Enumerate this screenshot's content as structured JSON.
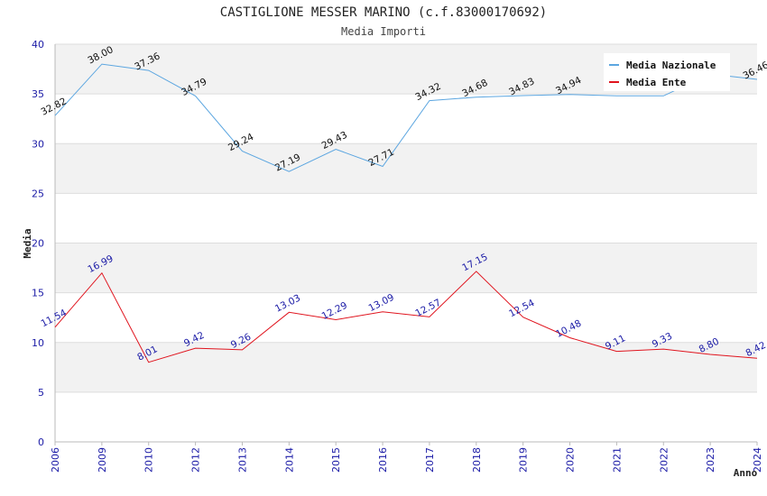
{
  "chart_data": {
    "type": "line",
    "title": "CASTIGLIONE MESSER MARINO (c.f.83000170692)",
    "subtitle": "Media Importi",
    "xlabel": "Anno",
    "ylabel": "Media",
    "ylim": [
      0,
      40
    ],
    "yticks": [
      0,
      5,
      10,
      15,
      20,
      25,
      30,
      35,
      40
    ],
    "grid": true,
    "legend_position": "top-right",
    "categories": [
      "2006",
      "2009",
      "2010",
      "2012",
      "2013",
      "2014",
      "2015",
      "2016",
      "2017",
      "2018",
      "2019",
      "2020",
      "2021",
      "2022",
      "2023",
      "2024"
    ],
    "series": [
      {
        "name": "Media Nazionale",
        "color": "#5ca6e0",
        "label_color": "#111111",
        "values": [
          32.82,
          38.0,
          37.36,
          34.79,
          29.24,
          27.19,
          29.43,
          27.71,
          34.32,
          34.68,
          34.83,
          34.94,
          34.8,
          34.8,
          37.0,
          36.46
        ],
        "labels": [
          "32.82",
          "38.00",
          "37.36",
          "34.79",
          "29.24",
          "27.19",
          "29.43",
          "27.71",
          "34.32",
          "34.68",
          "34.83",
          "34.94",
          "",
          "",
          "",
          "36.46"
        ]
      },
      {
        "name": "Media Ente",
        "color": "#e0141e",
        "label_color": "#1a1aa6",
        "values": [
          11.54,
          16.99,
          8.01,
          9.42,
          9.26,
          13.03,
          12.29,
          13.09,
          12.57,
          17.15,
          12.54,
          10.48,
          9.11,
          9.33,
          8.8,
          8.42
        ],
        "labels": [
          "11.54",
          "16.99",
          "8.01",
          "9.42",
          "9.26",
          "13.03",
          "12.29",
          "13.09",
          "12.57",
          "17.15",
          "12.54",
          "10.48",
          "9.11",
          "9.33",
          "8.80",
          "8.42"
        ]
      }
    ]
  },
  "colors": {
    "band": "#f2f2f2",
    "grid": "#dddddd",
    "axis": "#bbbbbb"
  }
}
